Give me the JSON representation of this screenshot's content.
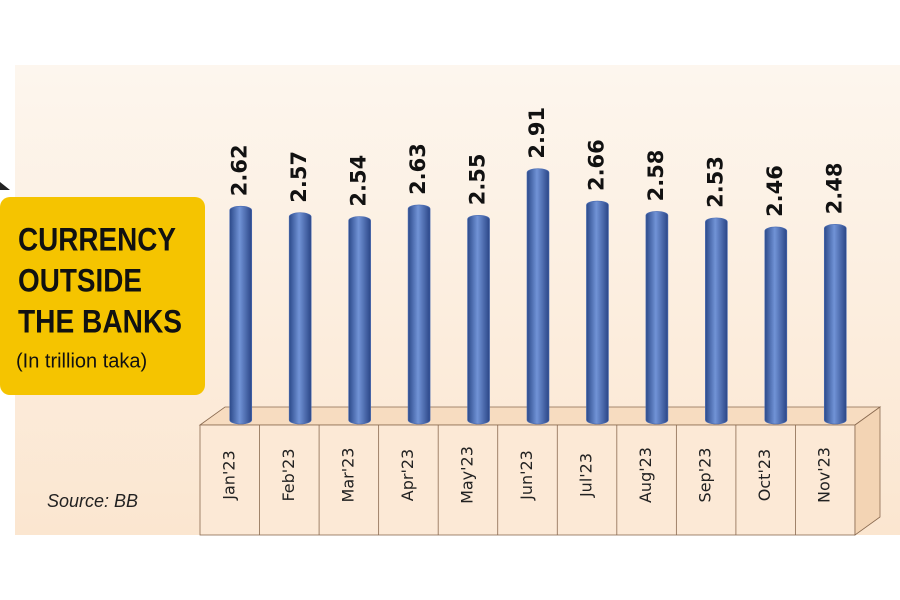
{
  "chart_data": {
    "type": "bar",
    "title": [
      "CURRENCY",
      "OUTSIDE",
      "THE BANKS"
    ],
    "subtitle": "(In trillion taka)",
    "source": "Source: BB",
    "categories": [
      "Jan'23",
      "Feb'23",
      "Mar'23",
      "Apr'23",
      "May'23",
      "Jun'23",
      "Jul'23",
      "Aug'23",
      "Sep'23",
      "Oct'23",
      "Nov'23"
    ],
    "values": [
      2.62,
      2.57,
      2.54,
      2.63,
      2.55,
      2.91,
      2.66,
      2.58,
      2.53,
      2.46,
      2.48
    ],
    "color": "#4a6cb3",
    "ylim": [
      1,
      3
    ]
  }
}
